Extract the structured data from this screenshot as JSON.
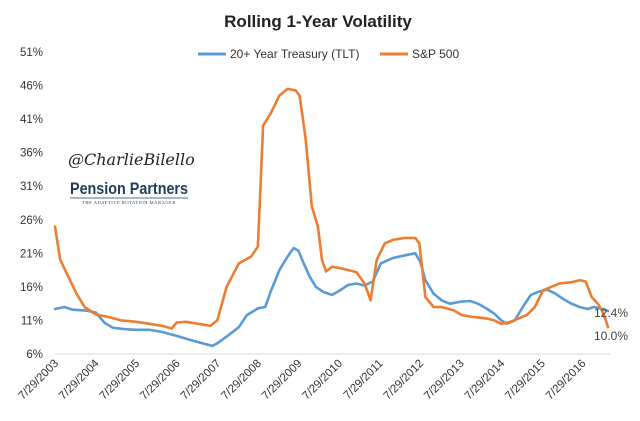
{
  "chart_data": {
    "type": "line",
    "title": "Rolling 1-Year Volatility",
    "xlabel": "",
    "ylabel": "",
    "ylim": [
      6,
      51
    ],
    "y_ticks": [
      "6%",
      "11%",
      "16%",
      "21%",
      "26%",
      "31%",
      "36%",
      "41%",
      "46%",
      "51%"
    ],
    "y_tick_values": [
      6,
      11,
      16,
      21,
      26,
      31,
      36,
      41,
      46,
      51
    ],
    "x_ticks": [
      "7/29/2003",
      "7/29/2004",
      "7/29/2005",
      "7/29/2006",
      "7/29/2007",
      "7/29/2008",
      "7/29/2009",
      "7/29/2010",
      "7/29/2011",
      "7/29/2012",
      "7/29/2013",
      "7/29/2014",
      "7/29/2015",
      "7/29/2016"
    ],
    "x_tick_values": [
      2003.57,
      2004.57,
      2005.57,
      2006.57,
      2007.57,
      2008.57,
      2009.57,
      2010.57,
      2011.57,
      2012.57,
      2013.57,
      2014.57,
      2015.57,
      2016.57
    ],
    "xlim": [
      2003.57,
      2017.25
    ],
    "grid": false,
    "legend": "top-center",
    "series": [
      {
        "name": "20+ Year Treasury (TLT)",
        "color": "#5b9bd5",
        "end_label": "12.4%",
        "points": [
          [
            2003.57,
            12.7
          ],
          [
            2003.8,
            13.0
          ],
          [
            2004.0,
            12.6
          ],
          [
            2004.3,
            12.5
          ],
          [
            2004.57,
            12.2
          ],
          [
            2004.8,
            10.6
          ],
          [
            2005.0,
            9.9
          ],
          [
            2005.3,
            9.7
          ],
          [
            2005.57,
            9.6
          ],
          [
            2005.9,
            9.6
          ],
          [
            2006.2,
            9.3
          ],
          [
            2006.57,
            8.7
          ],
          [
            2006.9,
            8.1
          ],
          [
            2007.2,
            7.6
          ],
          [
            2007.45,
            7.2
          ],
          [
            2007.57,
            7.6
          ],
          [
            2007.8,
            8.6
          ],
          [
            2008.1,
            10.0
          ],
          [
            2008.3,
            11.8
          ],
          [
            2008.57,
            12.8
          ],
          [
            2008.75,
            13.0
          ],
          [
            2008.9,
            15.5
          ],
          [
            2009.1,
            18.5
          ],
          [
            2009.3,
            20.5
          ],
          [
            2009.45,
            21.8
          ],
          [
            2009.57,
            21.4
          ],
          [
            2009.7,
            19.5
          ],
          [
            2009.85,
            17.5
          ],
          [
            2010.0,
            16.0
          ],
          [
            2010.2,
            15.2
          ],
          [
            2010.4,
            14.8
          ],
          [
            2010.6,
            15.5
          ],
          [
            2010.8,
            16.3
          ],
          [
            2011.0,
            16.5
          ],
          [
            2011.2,
            16.2
          ],
          [
            2011.4,
            16.8
          ],
          [
            2011.6,
            19.5
          ],
          [
            2011.9,
            20.3
          ],
          [
            2012.2,
            20.7
          ],
          [
            2012.45,
            21.0
          ],
          [
            2012.57,
            19.8
          ],
          [
            2012.7,
            17.0
          ],
          [
            2012.9,
            15.0
          ],
          [
            2013.1,
            14.0
          ],
          [
            2013.3,
            13.5
          ],
          [
            2013.57,
            13.8
          ],
          [
            2013.8,
            13.9
          ],
          [
            2014.0,
            13.5
          ],
          [
            2014.2,
            12.8
          ],
          [
            2014.4,
            12.0
          ],
          [
            2014.57,
            11.0
          ],
          [
            2014.7,
            10.5
          ],
          [
            2014.9,
            11.0
          ],
          [
            2015.1,
            13.0
          ],
          [
            2015.3,
            14.8
          ],
          [
            2015.5,
            15.3
          ],
          [
            2015.7,
            15.6
          ],
          [
            2015.9,
            15.0
          ],
          [
            2016.1,
            14.2
          ],
          [
            2016.3,
            13.5
          ],
          [
            2016.5,
            13.0
          ],
          [
            2016.7,
            12.7
          ],
          [
            2016.85,
            13.0
          ],
          [
            2017.0,
            12.8
          ],
          [
            2017.2,
            12.4
          ]
        ]
      },
      {
        "name": "S&P 500",
        "color": "#ed7d31",
        "end_label": "10.0%",
        "points": [
          [
            2003.57,
            25.0
          ],
          [
            2003.7,
            20.0
          ],
          [
            2003.9,
            17.5
          ],
          [
            2004.1,
            15.0
          ],
          [
            2004.3,
            13.0
          ],
          [
            2004.57,
            11.9
          ],
          [
            2004.9,
            11.5
          ],
          [
            2005.2,
            11.0
          ],
          [
            2005.57,
            10.8
          ],
          [
            2005.9,
            10.5
          ],
          [
            2006.2,
            10.2
          ],
          [
            2006.45,
            9.8
          ],
          [
            2006.57,
            10.7
          ],
          [
            2006.8,
            10.8
          ],
          [
            2007.1,
            10.5
          ],
          [
            2007.4,
            10.2
          ],
          [
            2007.57,
            11.0
          ],
          [
            2007.8,
            16.0
          ],
          [
            2008.1,
            19.5
          ],
          [
            2008.4,
            20.5
          ],
          [
            2008.57,
            22.0
          ],
          [
            2008.7,
            40.0
          ],
          [
            2008.9,
            42.0
          ],
          [
            2009.1,
            44.5
          ],
          [
            2009.3,
            45.5
          ],
          [
            2009.5,
            45.3
          ],
          [
            2009.6,
            44.5
          ],
          [
            2009.75,
            38.0
          ],
          [
            2009.9,
            28.0
          ],
          [
            2010.05,
            25.0
          ],
          [
            2010.15,
            20.0
          ],
          [
            2010.25,
            18.3
          ],
          [
            2010.4,
            19.0
          ],
          [
            2010.6,
            18.8
          ],
          [
            2010.8,
            18.5
          ],
          [
            2011.0,
            18.2
          ],
          [
            2011.2,
            16.5
          ],
          [
            2011.35,
            14.0
          ],
          [
            2011.5,
            20.0
          ],
          [
            2011.7,
            22.5
          ],
          [
            2011.9,
            23.0
          ],
          [
            2012.2,
            23.3
          ],
          [
            2012.45,
            23.3
          ],
          [
            2012.55,
            22.5
          ],
          [
            2012.7,
            14.5
          ],
          [
            2012.9,
            13.0
          ],
          [
            2013.1,
            13.0
          ],
          [
            2013.4,
            12.5
          ],
          [
            2013.6,
            11.8
          ],
          [
            2013.9,
            11.5
          ],
          [
            2014.2,
            11.3
          ],
          [
            2014.4,
            11.0
          ],
          [
            2014.57,
            10.5
          ],
          [
            2014.8,
            10.8
          ],
          [
            2015.0,
            11.3
          ],
          [
            2015.2,
            11.8
          ],
          [
            2015.4,
            13.0
          ],
          [
            2015.6,
            15.5
          ],
          [
            2015.8,
            16.0
          ],
          [
            2016.0,
            16.5
          ],
          [
            2016.3,
            16.7
          ],
          [
            2016.5,
            17.0
          ],
          [
            2016.65,
            16.8
          ],
          [
            2016.8,
            14.5
          ],
          [
            2016.95,
            13.5
          ],
          [
            2017.05,
            12.5
          ],
          [
            2017.15,
            11.0
          ],
          [
            2017.2,
            10.0
          ]
        ]
      }
    ]
  },
  "watermark": {
    "handle": "@CharlieBilello",
    "logo_main": "Pension Partners",
    "logo_sub": "THE ADAPTIVE ROTATION MANAGER"
  }
}
